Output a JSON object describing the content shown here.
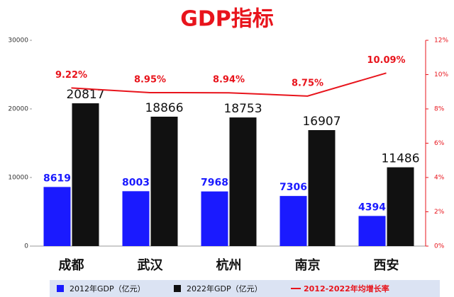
{
  "chart_data": {
    "type": "bar-line",
    "title": "GDP指标",
    "categories": [
      "成都",
      "武汉",
      "杭州",
      "南京",
      "西安"
    ],
    "series": [
      {
        "name": "2012年GDP（亿元）",
        "type": "bar",
        "color": "#1a1aff",
        "values": [
          8619,
          8003,
          7968,
          7306,
          4394
        ]
      },
      {
        "name": "2022年GDP（亿元）",
        "type": "bar",
        "color": "#111111",
        "values": [
          20817,
          18866,
          18753,
          16907,
          11486
        ]
      },
      {
        "name": "2012-2022年均增长率",
        "type": "line",
        "axis": "y2",
        "color": "#e8141c",
        "values": [
          9.22,
          8.95,
          8.94,
          8.75,
          10.09
        ],
        "value_labels": [
          "9.22%",
          "8.95%",
          "8.94%",
          "8.75%",
          "10.09%"
        ]
      }
    ],
    "ylim": [
      0,
      30000
    ],
    "yticks": [
      0,
      10000,
      20000,
      30000
    ],
    "y2lim": [
      0,
      12
    ],
    "y2ticks": [
      {
        "value": 0,
        "label": "0%"
      },
      {
        "value": 2,
        "label": "2%"
      },
      {
        "value": 4,
        "label": "4%"
      },
      {
        "value": 6,
        "label": "6%"
      },
      {
        "value": 8,
        "label": "8%"
      },
      {
        "value": 10,
        "label": "10%"
      },
      {
        "value": 12,
        "label": "12%"
      }
    ],
    "legend": "bottom"
  }
}
